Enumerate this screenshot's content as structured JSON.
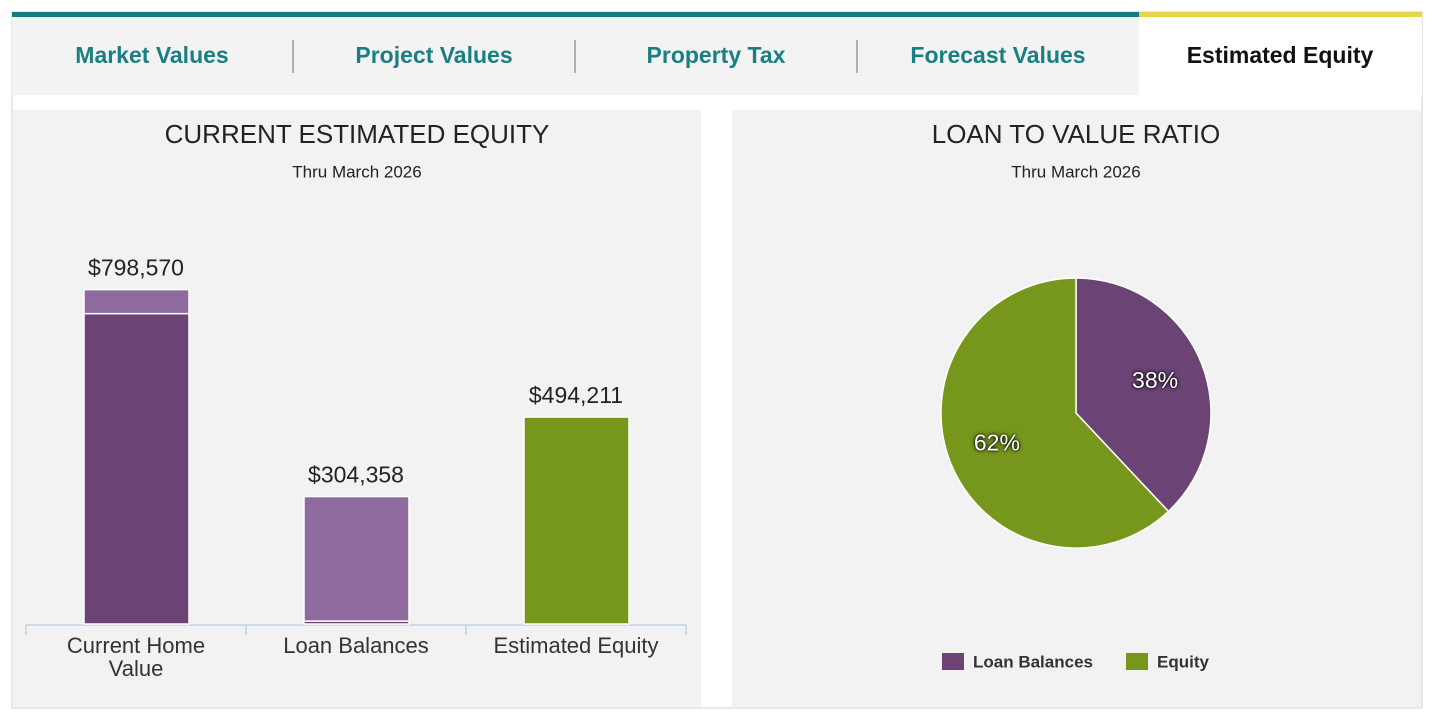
{
  "tabs": {
    "items": [
      "Market Values",
      "Project Values",
      "Property Tax",
      "Forecast Values",
      "Estimated Equity"
    ],
    "active": 4
  },
  "chart_data": [
    {
      "type": "bar",
      "stacked": true,
      "title": "CURRENT ESTIMATED EQUITY",
      "subtitle": "Thru March 2026",
      "categories": [
        "Current Home Value",
        "Loan Balances",
        "Estimated Equity"
      ],
      "series": [
        {
          "color": "#6b4475",
          "values": [
            741170,
            7000,
            null
          ]
        },
        {
          "color": "#8e6a9e",
          "values": [
            57400,
            297358,
            null
          ]
        },
        {
          "color": "#76961c",
          "values": [
            null,
            null,
            494211
          ]
        }
      ],
      "totals": [
        798570,
        304358,
        494211
      ],
      "total_labels": [
        "$798,570",
        "$304,358",
        "$494,211"
      ],
      "ylim": [
        0,
        800000
      ]
    },
    {
      "type": "pie",
      "title": "LOAN TO VALUE RATIO",
      "subtitle": "Thru March 2026",
      "categories": [
        "Loan Balances",
        "Equity"
      ],
      "values": [
        38,
        62
      ],
      "value_labels": [
        "38%",
        "62%"
      ],
      "colors": [
        "#6b4475",
        "#76961c"
      ],
      "legend": "bottom"
    }
  ]
}
